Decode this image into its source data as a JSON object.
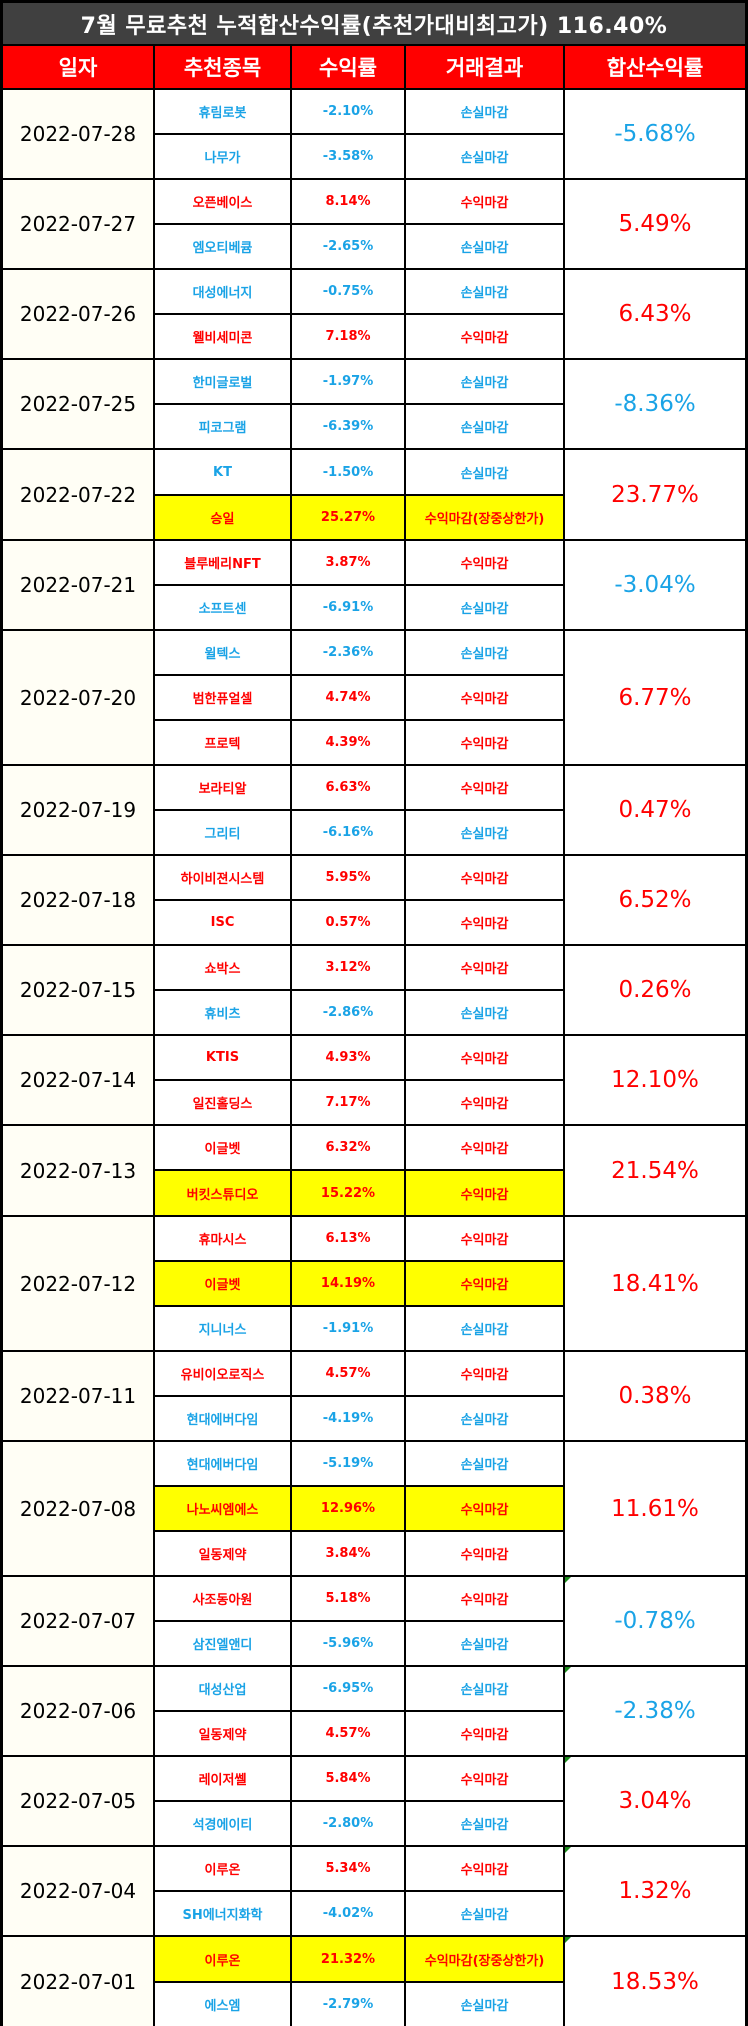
{
  "title": "7월 무료추천 누적합산수익률(추천가대비최고가) 116.40%",
  "headers": [
    "일자",
    "추천종목",
    "수익률",
    "거래결과",
    "합산수익률"
  ],
  "groups": [
    {
      "date": "2022-07-28",
      "total": "-5.68%",
      "total_sign": "neg",
      "rows": [
        {
          "stock": "휴림로봇",
          "rate": "-2.10%",
          "result": "손실마감",
          "sign": "neg",
          "hl": false
        },
        {
          "stock": "나무가",
          "rate": "-3.58%",
          "result": "손실마감",
          "sign": "neg",
          "hl": false
        }
      ]
    },
    {
      "date": "2022-07-27",
      "total": "5.49%",
      "total_sign": "pos",
      "rows": [
        {
          "stock": "오픈베이스",
          "rate": "8.14%",
          "result": "수익마감",
          "sign": "pos",
          "hl": false
        },
        {
          "stock": "엠오티베큠",
          "rate": "-2.65%",
          "result": "손실마감",
          "sign": "neg",
          "hl": false
        }
      ]
    },
    {
      "date": "2022-07-26",
      "total": "6.43%",
      "total_sign": "pos",
      "rows": [
        {
          "stock": "대성에너지",
          "rate": "-0.75%",
          "result": "손실마감",
          "sign": "neg",
          "hl": false
        },
        {
          "stock": "웰비세미콘",
          "rate": "7.18%",
          "result": "수익마감",
          "sign": "pos",
          "hl": false
        }
      ]
    },
    {
      "date": "2022-07-25",
      "total": "-8.36%",
      "total_sign": "neg",
      "rows": [
        {
          "stock": "한미글로벌",
          "rate": "-1.97%",
          "result": "손실마감",
          "sign": "neg",
          "hl": false
        },
        {
          "stock": "피코그램",
          "rate": "-6.39%",
          "result": "손실마감",
          "sign": "neg",
          "hl": false
        }
      ]
    },
    {
      "date": "2022-07-22",
      "total": "23.77%",
      "total_sign": "pos",
      "rows": [
        {
          "stock": "KT",
          "rate": "-1.50%",
          "result": "손실마감",
          "sign": "neg",
          "hl": false
        },
        {
          "stock": "승일",
          "rate": "25.27%",
          "result": "수익마감(장중상한가)",
          "sign": "pos",
          "hl": true
        }
      ]
    },
    {
      "date": "2022-07-21",
      "total": "-3.04%",
      "total_sign": "neg",
      "rows": [
        {
          "stock": "블루베리NFT",
          "rate": "3.87%",
          "result": "수익마감",
          "sign": "pos",
          "hl": false
        },
        {
          "stock": "소프트센",
          "rate": "-6.91%",
          "result": "손실마감",
          "sign": "neg",
          "hl": false
        }
      ]
    },
    {
      "date": "2022-07-20",
      "total": "6.77%",
      "total_sign": "pos",
      "rows": [
        {
          "stock": "윌텍스",
          "rate": "-2.36%",
          "result": "손실마감",
          "sign": "neg",
          "hl": false
        },
        {
          "stock": "범한퓨얼셀",
          "rate": "4.74%",
          "result": "수익마감",
          "sign": "pos",
          "hl": false
        },
        {
          "stock": "프로텍",
          "rate": "4.39%",
          "result": "수익마감",
          "sign": "pos",
          "hl": false
        }
      ]
    },
    {
      "date": "2022-07-19",
      "total": "0.47%",
      "total_sign": "pos",
      "rows": [
        {
          "stock": "보라티알",
          "rate": "6.63%",
          "result": "수익마감",
          "sign": "pos",
          "hl": false
        },
        {
          "stock": "그리티",
          "rate": "-6.16%",
          "result": "손실마감",
          "sign": "neg",
          "hl": false
        }
      ]
    },
    {
      "date": "2022-07-18",
      "total": "6.52%",
      "total_sign": "pos",
      "rows": [
        {
          "stock": "하이비젼시스템",
          "rate": "5.95%",
          "result": "수익마감",
          "sign": "pos",
          "hl": false
        },
        {
          "stock": "ISC",
          "rate": "0.57%",
          "result": "수익마감",
          "sign": "pos",
          "hl": false
        }
      ]
    },
    {
      "date": "2022-07-15",
      "total": "0.26%",
      "total_sign": "pos",
      "rows": [
        {
          "stock": "쇼박스",
          "rate": "3.12%",
          "result": "수익마감",
          "sign": "pos",
          "hl": false
        },
        {
          "stock": "휴비츠",
          "rate": "-2.86%",
          "result": "손실마감",
          "sign": "neg",
          "hl": false
        }
      ]
    },
    {
      "date": "2022-07-14",
      "total": "12.10%",
      "total_sign": "pos",
      "rows": [
        {
          "stock": "KTIS",
          "rate": "4.93%",
          "result": "수익마감",
          "sign": "pos",
          "hl": false
        },
        {
          "stock": "일진홀딩스",
          "rate": "7.17%",
          "result": "수익마감",
          "sign": "pos",
          "hl": false
        }
      ]
    },
    {
      "date": "2022-07-13",
      "total": "21.54%",
      "total_sign": "pos",
      "rows": [
        {
          "stock": "이글벳",
          "rate": "6.32%",
          "result": "수익마감",
          "sign": "pos",
          "hl": false
        },
        {
          "stock": "버킷스튜디오",
          "rate": "15.22%",
          "result": "수익마감",
          "sign": "pos",
          "hl": true
        }
      ]
    },
    {
      "date": "2022-07-12",
      "total": "18.41%",
      "total_sign": "pos",
      "rows": [
        {
          "stock": "휴마시스",
          "rate": "6.13%",
          "result": "수익마감",
          "sign": "pos",
          "hl": false
        },
        {
          "stock": "이글벳",
          "rate": "14.19%",
          "result": "수익마감",
          "sign": "pos",
          "hl": true
        },
        {
          "stock": "지니너스",
          "rate": "-1.91%",
          "result": "손실마감",
          "sign": "neg",
          "hl": false
        }
      ]
    },
    {
      "date": "2022-07-11",
      "total": "0.38%",
      "total_sign": "pos",
      "rows": [
        {
          "stock": "유비이오로직스",
          "rate": "4.57%",
          "result": "수익마감",
          "sign": "pos",
          "hl": false
        },
        {
          "stock": "현대에버다임",
          "rate": "-4.19%",
          "result": "손실마감",
          "sign": "neg",
          "hl": false
        }
      ]
    },
    {
      "date": "2022-07-08",
      "total": "11.61%",
      "total_sign": "pos",
      "rows": [
        {
          "stock": "현대에버다임",
          "rate": "-5.19%",
          "result": "손실마감",
          "sign": "neg",
          "hl": false
        },
        {
          "stock": "나노씨엠에스",
          "rate": "12.96%",
          "result": "수익마감",
          "sign": "pos",
          "hl": true
        },
        {
          "stock": "일동제약",
          "rate": "3.84%",
          "result": "수익마감",
          "sign": "pos",
          "hl": false
        }
      ]
    },
    {
      "date": "2022-07-07",
      "total": "-0.78%",
      "total_sign": "neg",
      "tick": true,
      "rows": [
        {
          "stock": "사조동아원",
          "rate": "5.18%",
          "result": "수익마감",
          "sign": "pos",
          "hl": false
        },
        {
          "stock": "삼진엘앤디",
          "rate": "-5.96%",
          "result": "손실마감",
          "sign": "neg",
          "hl": false
        }
      ]
    },
    {
      "date": "2022-07-06",
      "total": "-2.38%",
      "total_sign": "neg",
      "tick": true,
      "rows": [
        {
          "stock": "대성산업",
          "rate": "-6.95%",
          "result": "손실마감",
          "sign": "neg",
          "hl": false
        },
        {
          "stock": "일동제약",
          "rate": "4.57%",
          "result": "수익마감",
          "sign": "pos",
          "hl": false
        }
      ]
    },
    {
      "date": "2022-07-05",
      "total": "3.04%",
      "total_sign": "pos",
      "tick": true,
      "rows": [
        {
          "stock": "레이저쎌",
          "rate": "5.84%",
          "result": "수익마감",
          "sign": "pos",
          "hl": false
        },
        {
          "stock": "석경에이티",
          "rate": "-2.80%",
          "result": "손실마감",
          "sign": "neg",
          "hl": false
        }
      ]
    },
    {
      "date": "2022-07-04",
      "total": "1.32%",
      "total_sign": "pos",
      "tick": true,
      "rows": [
        {
          "stock": "이루온",
          "rate": "5.34%",
          "result": "수익마감",
          "sign": "pos",
          "hl": false
        },
        {
          "stock": "SH에너지화학",
          "rate": "-4.02%",
          "result": "손실마감",
          "sign": "neg",
          "hl": false
        }
      ]
    },
    {
      "date": "2022-07-01",
      "total": "18.53%",
      "total_sign": "pos",
      "tick": true,
      "rows": [
        {
          "stock": "이루온",
          "rate": "21.32%",
          "result": "수익마감(장중상한가)",
          "sign": "pos",
          "hl": true
        },
        {
          "stock": "에스엠",
          "rate": "-2.79%",
          "result": "손실마감",
          "sign": "neg",
          "hl": false
        }
      ]
    }
  ],
  "colors": {
    "positive": "#ff0000",
    "negative": "#1aa3e6",
    "highlight": "#ffff00",
    "header": "#ff0000",
    "title_bg": "#404040"
  }
}
